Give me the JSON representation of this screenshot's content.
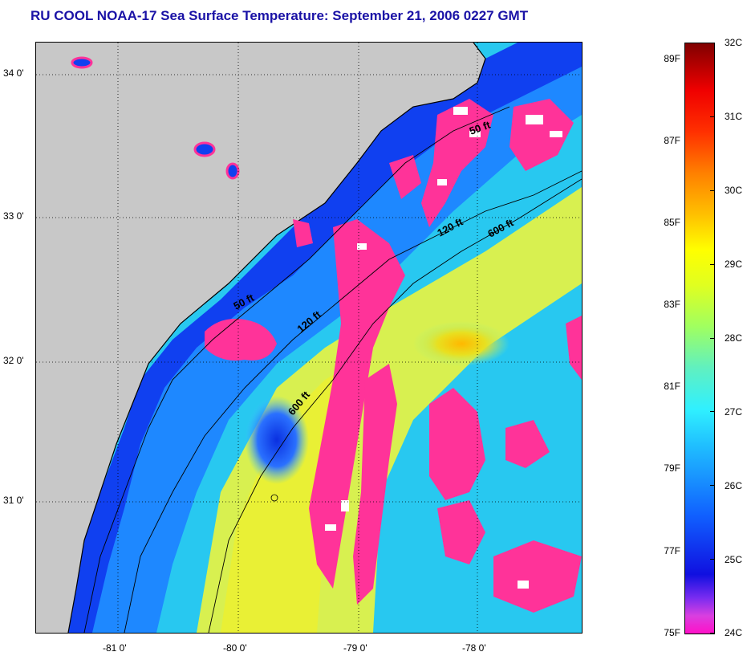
{
  "title": "RU COOL  NOAA-17  Sea Surface Temperature:  September 21, 2006 0227 GMT",
  "map": {
    "lat_labels": [
      "34 0'",
      "33 0'",
      "32 0'",
      "31 0'"
    ],
    "lon_labels": [
      "-81 0'",
      "-80 0'",
      "-79 0'",
      "-78 0'"
    ],
    "isobaths": {
      "a": "50 ft",
      "b": "50 ft",
      "c": "120 ft",
      "d": "120 ft",
      "e": "600 ft",
      "f": "600 ft"
    },
    "colors": {
      "land": "#c8c8c8",
      "cloud": "#ff3399",
      "clear": "#ffffff",
      "nearshore": "#1040ff",
      "shelf": "#18a8ff",
      "gulfstream": "#e8f040"
    }
  },
  "colorbar": {
    "fahrenheit": [
      "89F",
      "87F",
      "85F",
      "83F",
      "81F",
      "79F",
      "77F",
      "75F"
    ],
    "celsius": [
      "32C",
      "31C",
      "30C",
      "29C",
      "28C",
      "27C",
      "26C",
      "25C",
      "24C"
    ],
    "min_c": 24,
    "max_c": 32
  }
}
